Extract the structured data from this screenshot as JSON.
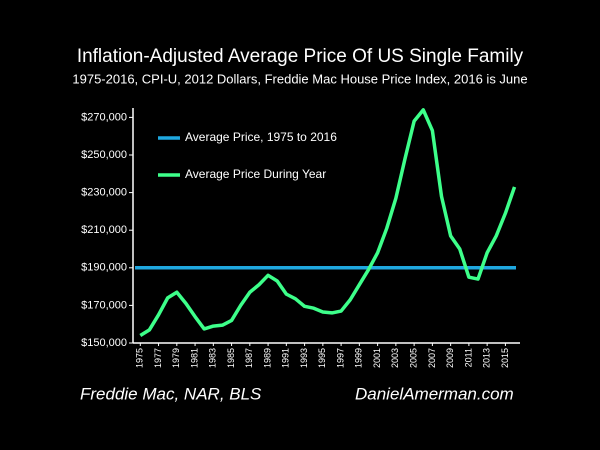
{
  "chart_data": {
    "type": "line",
    "title": "Inflation-Adjusted Average Price Of US Single Family",
    "subtitle": "1975-2016, CPI-U, 2012 Dollars, Freddie Mac House Price Index, 2016 is June",
    "x": [
      1975,
      1976,
      1977,
      1978,
      1979,
      1980,
      1981,
      1982,
      1983,
      1984,
      1985,
      1986,
      1987,
      1988,
      1989,
      1990,
      1991,
      1992,
      1993,
      1994,
      1995,
      1996,
      1997,
      1998,
      1999,
      2000,
      2001,
      2002,
      2003,
      2004,
      2005,
      2006,
      2007,
      2008,
      2009,
      2010,
      2011,
      2012,
      2013,
      2014,
      2015,
      2016
    ],
    "series": [
      {
        "name": "Average Price During Year",
        "color": "#3dff8a",
        "values": [
          154000,
          157000,
          165000,
          174000,
          177000,
          171000,
          164000,
          157500,
          159000,
          159500,
          162000,
          170000,
          177000,
          181000,
          186000,
          183000,
          176000,
          173500,
          169500,
          168500,
          166500,
          166000,
          167000,
          173000,
          181000,
          189000,
          198000,
          211000,
          227000,
          248000,
          268000,
          274000,
          263000,
          228000,
          207000,
          200000,
          185000,
          184000,
          198000,
          207000,
          219000,
          233000
        ]
      }
    ],
    "reference_line": {
      "name": "Average Price, 1975 to 2016",
      "value": 190000,
      "color": "#1fa8e0"
    },
    "xlim": [
      1974.2,
      2016.6
    ],
    "xticks": [
      1975,
      1977,
      1979,
      1981,
      1983,
      1985,
      1987,
      1989,
      1991,
      1993,
      1995,
      1997,
      1999,
      2001,
      2003,
      2005,
      2007,
      2009,
      2011,
      2013,
      2015
    ],
    "ylim": [
      150000,
      275000
    ],
    "yticks": [
      {
        "value": 150000,
        "label": "$150,000"
      },
      {
        "value": 170000,
        "label": "$170,000"
      },
      {
        "value": 190000,
        "label": "$190,000"
      },
      {
        "value": 210000,
        "label": "$210,000"
      },
      {
        "value": 230000,
        "label": "$230,000"
      },
      {
        "value": 250000,
        "label": "$250,000"
      },
      {
        "value": 270000,
        "label": "$270,000"
      }
    ],
    "sources": "Freddie Mac, NAR, BLS",
    "website": "DanielAmerman.com"
  }
}
